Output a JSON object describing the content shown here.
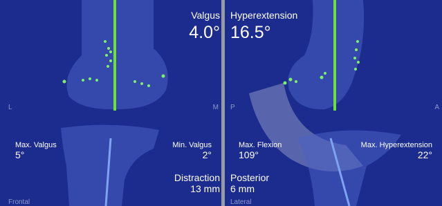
{
  "left": {
    "angle_label": "Valgus",
    "angle": "4.0°",
    "side_left": "L",
    "side_right": "M",
    "max_label": "Max. Valgus",
    "max_value": "5°",
    "min_label": "Min. Valgus",
    "min_value": "2°",
    "gap_label": "Distraction",
    "gap_value": "13 mm",
    "view": "Frontal"
  },
  "right": {
    "angle_label": "Hyperextension",
    "angle": "16.5°",
    "side_left": "P",
    "side_right": "A",
    "max_label": "Max. Flexion",
    "max_value": "109°",
    "min_label": "Max. Hyperextension",
    "min_value": "22°",
    "gap_label": "Posterior",
    "gap_value": "6 mm",
    "view": "Lateral"
  }
}
